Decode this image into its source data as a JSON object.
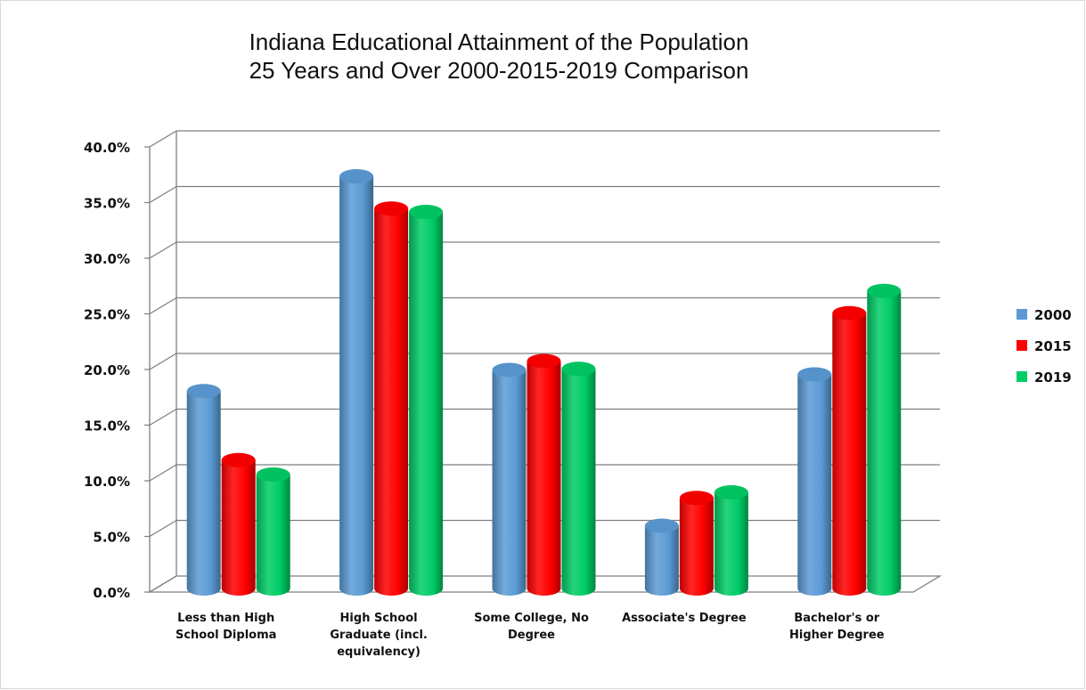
{
  "chart_data": {
    "type": "bar",
    "title": "Indiana Educational Attainment of the Population\n25 Years and Over  2000-2015-2019 Comparison",
    "categories": [
      "Less than High\nSchool Diploma",
      "High School\nGraduate (incl.\nequivalency)",
      "Some College, No\nDegree",
      "Associate's Degree",
      "Bachelor's or\nHigher Degree"
    ],
    "series": [
      {
        "name": "2000",
        "color": "#5b9bd5",
        "values": [
          17.9,
          37.2,
          19.8,
          5.8,
          19.4
        ]
      },
      {
        "name": "2015",
        "color": "#ff0000",
        "values": [
          11.7,
          34.3,
          20.6,
          8.3,
          24.9
        ]
      },
      {
        "name": "2019",
        "color": "#00cc66",
        "values": [
          10.4,
          34.0,
          19.9,
          8.8,
          26.9
        ]
      }
    ],
    "ylim": [
      0,
      40
    ],
    "yticks": [
      "0.0%",
      "5.0%",
      "10.0%",
      "15.0%",
      "20.0%",
      "25.0%",
      "30.0%",
      "35.0%",
      "40.0%"
    ],
    "grid": true,
    "legend": "right"
  }
}
